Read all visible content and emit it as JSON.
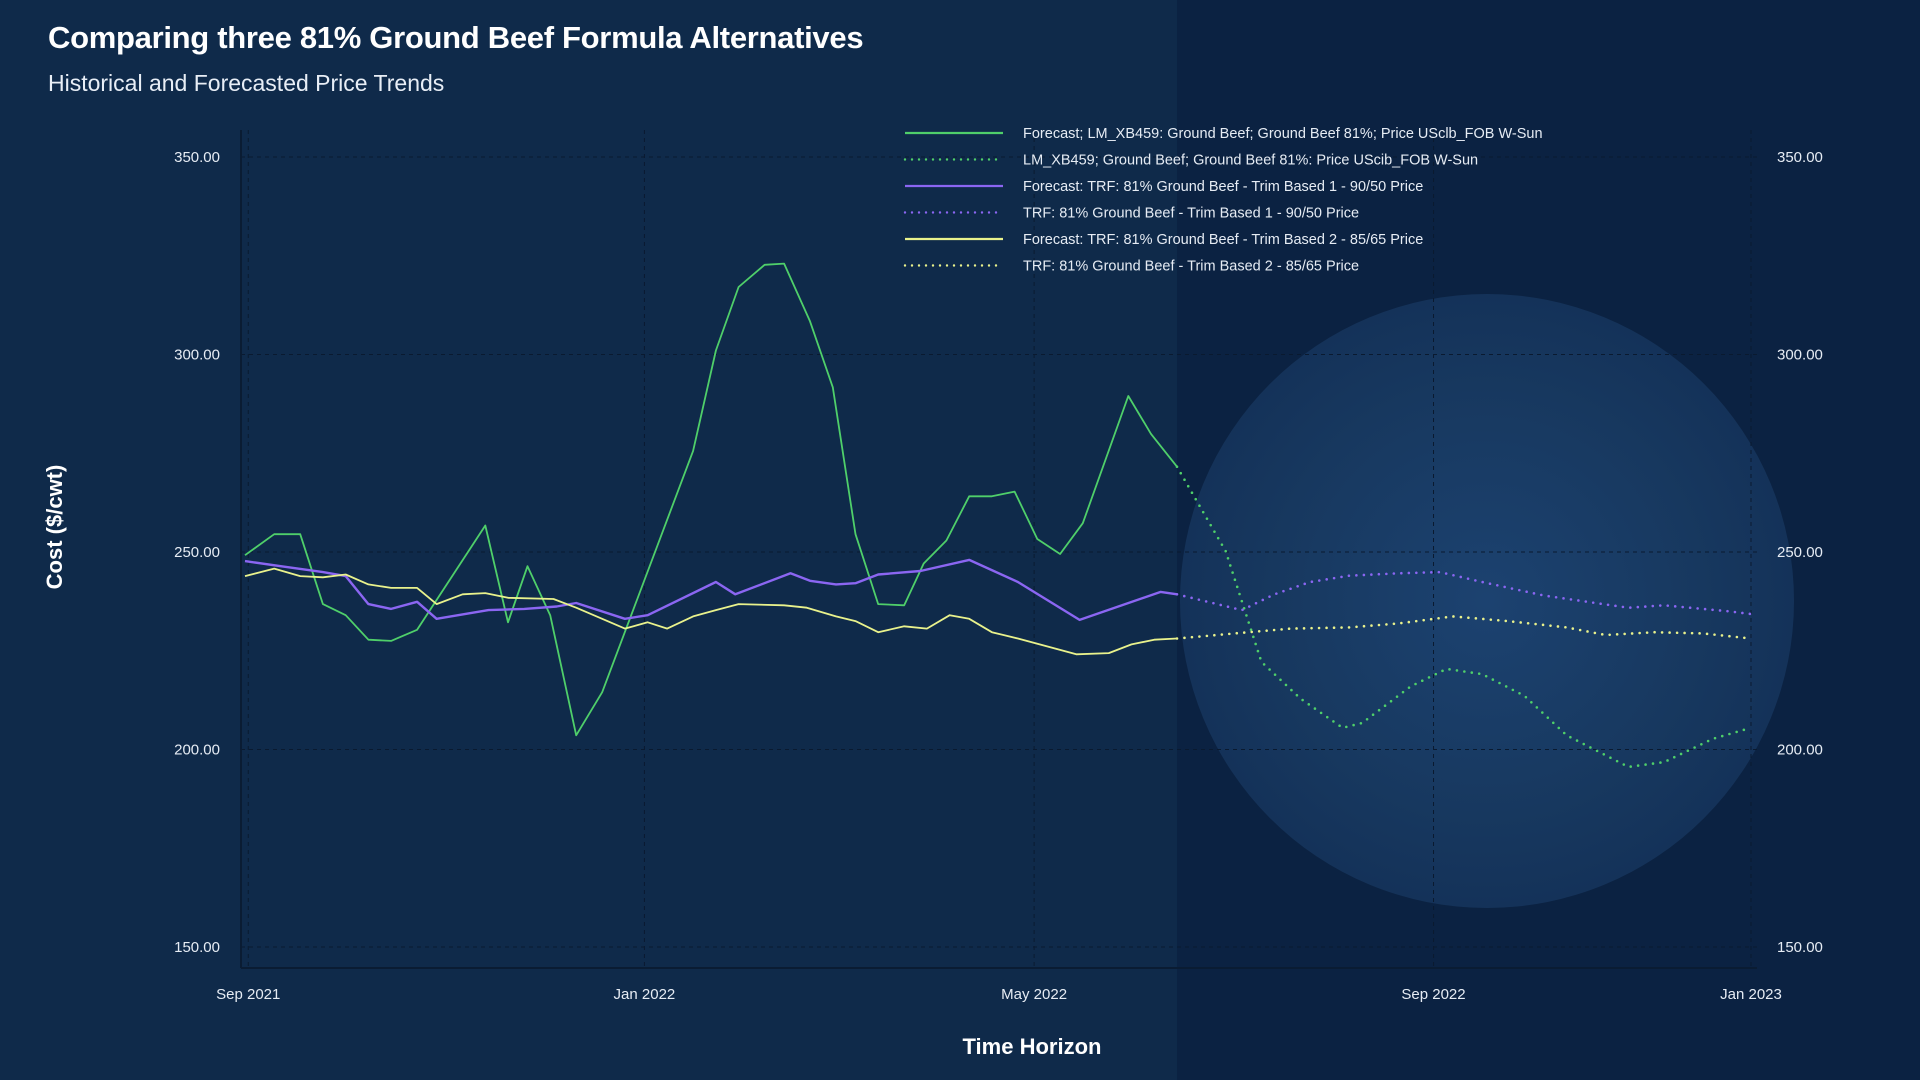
{
  "header": {
    "title": "Comparing three 81% Ground Beef Formula Alternatives",
    "subtitle": "Historical and Forecasted Price Trends"
  },
  "chart_data": {
    "type": "line",
    "title": "Comparing three 81% Ground Beef Formula Alternatives",
    "subtitle": "Historical and Forecasted Price Trends",
    "xlabel": "Time Horizon",
    "ylabel": "Cost ($/cwt)",
    "ylim": [
      150,
      350
    ],
    "yticks": [
      "150.00",
      "200.00",
      "250.00",
      "300.00",
      "350.00"
    ],
    "ytick_values": [
      150,
      200,
      250,
      300,
      350
    ],
    "xticks": [
      {
        "label": "Sep 2021",
        "date": "2021-09-01"
      },
      {
        "label": "Jan 2022",
        "date": "2022-01-01"
      },
      {
        "label": "May 2022",
        "date": "2022-05-01"
      },
      {
        "label": "Sep 2022",
        "date": "2022-09-01"
      },
      {
        "label": "Jan 2023",
        "date": "2023-01-01"
      }
    ],
    "xlim": [
      "2021-08-31",
      "2022-12-09"
    ],
    "forecast_start": "2022-06-14",
    "grid": true,
    "y_axis_both_sides": true,
    "legend_placement": "top-center",
    "colors": {
      "background": "#0f2a4a",
      "forecast_region": "#0b2242",
      "green": "#4fcf6a",
      "purple": "#8b66f2",
      "yellow": "#e9f28c"
    },
    "series": [
      {
        "name": "Forecast; LM_XB459: Ground Beef; Ground Beef 81%; Price USclb_FOB W-Sun",
        "color": "#4fcf6a",
        "style": "solid",
        "x": [
          "2021-08-31",
          "2021-09-09",
          "2021-09-17",
          "2021-09-24",
          "2021-10-01",
          "2021-10-08",
          "2021-10-15",
          "2021-10-23",
          "2021-11-13",
          "2021-11-20",
          "2021-11-26",
          "2021-12-03",
          "2021-12-11",
          "2021-12-19",
          "2022-01-16",
          "2022-01-23",
          "2022-01-30",
          "2022-02-07",
          "2022-02-13",
          "2022-02-21",
          "2022-02-28",
          "2022-03-07",
          "2022-03-14",
          "2022-03-22",
          "2022-03-28",
          "2022-04-04",
          "2022-04-11",
          "2022-04-18",
          "2022-04-25",
          "2022-05-02",
          "2022-05-09",
          "2022-05-16",
          "2022-05-30",
          "2022-06-06",
          "2022-06-14"
        ],
        "y": [
          249.2,
          254.5,
          254.5,
          236.8,
          234.0,
          227.8,
          227.5,
          230.3,
          256.7,
          232.2,
          246.4,
          234.0,
          203.6,
          214.5,
          275.6,
          301.0,
          317.1,
          322.7,
          323.0,
          308.4,
          291.7,
          254.5,
          236.8,
          236.5,
          247.1,
          252.9,
          264.1,
          264.1,
          265.3,
          253.3,
          249.5,
          257.3,
          289.5,
          279.9,
          271.6
        ]
      },
      {
        "name": "LM_XB459; Ground Beef; Ground Beef 81%: Price UScib_FOB W-Sun",
        "color": "#4fcf6a",
        "style": "dotted",
        "x": [
          "2022-06-14",
          "2022-06-29",
          "2022-07-10",
          "2022-07-22",
          "2022-08-04",
          "2022-08-10",
          "2022-08-25",
          "2022-09-05",
          "2022-09-16",
          "2022-09-29",
          "2022-10-12",
          "2022-10-31",
          "2022-11-11",
          "2022-11-26",
          "2022-12-09"
        ],
        "y": [
          271.6,
          250.2,
          222.2,
          212.9,
          205.5,
          206.7,
          216.0,
          220.4,
          219.1,
          213.6,
          203.6,
          195.6,
          196.8,
          202.7,
          205.5
        ]
      },
      {
        "name": "Forecast: TRF: 81% Ground Beef - Trim Based 1 - 90/50 Price",
        "color": "#8b66f2",
        "style": "solid",
        "x": [
          "2021-08-31",
          "2021-09-11",
          "2021-09-24",
          "2021-10-01",
          "2021-10-08",
          "2021-10-15",
          "2021-10-23",
          "2021-10-29",
          "2021-11-14",
          "2021-11-25",
          "2021-12-05",
          "2021-12-11",
          "2021-12-26",
          "2022-01-02",
          "2022-01-23",
          "2022-01-29",
          "2022-02-15",
          "2022-02-21",
          "2022-03-01",
          "2022-03-07",
          "2022-03-14",
          "2022-03-27",
          "2022-04-11",
          "2022-04-26",
          "2022-05-15",
          "2022-06-09",
          "2022-06-14"
        ],
        "y": [
          247.7,
          246.4,
          244.9,
          243.9,
          236.8,
          235.6,
          237.4,
          233.1,
          235.3,
          235.6,
          236.2,
          237.1,
          233.1,
          234.0,
          242.4,
          239.3,
          244.6,
          242.7,
          241.8,
          242.1,
          244.3,
          245.2,
          248.0,
          242.4,
          232.8,
          239.9,
          239.3
        ]
      },
      {
        "name": "TRF: 81% Ground Beef - Trim Based 1 - 90/50 Price",
        "color": "#8b66f2",
        "style": "dotted",
        "x": [
          "2022-06-14",
          "2022-07-04",
          "2022-07-14",
          "2022-07-25",
          "2022-08-06",
          "2022-08-21",
          "2022-09-03",
          "2022-09-16",
          "2022-10-05",
          "2022-10-31",
          "2022-11-11",
          "2022-12-01",
          "2022-12-09"
        ],
        "y": [
          239.3,
          235.3,
          239.3,
          242.4,
          244.0,
          244.6,
          244.9,
          242.4,
          239.0,
          235.9,
          236.5,
          235.0,
          234.3
        ]
      },
      {
        "name": "Forecast: TRF: 81% Ground Beef - Trim Based 2 - 85/65 Price",
        "color": "#e9f28c",
        "style": "solid",
        "x": [
          "2021-08-31",
          "2021-09-09",
          "2021-09-17",
          "2021-09-24",
          "2021-10-01",
          "2021-10-08",
          "2021-10-15",
          "2021-10-23",
          "2021-10-29",
          "2021-11-06",
          "2021-11-13",
          "2021-11-20",
          "2021-12-04",
          "2021-12-11",
          "2021-12-26",
          "2022-01-02",
          "2022-01-08",
          "2022-01-16",
          "2022-01-23",
          "2022-01-30",
          "2022-02-13",
          "2022-02-20",
          "2022-03-01",
          "2022-03-07",
          "2022-03-14",
          "2022-03-22",
          "2022-03-29",
          "2022-04-05",
          "2022-04-11",
          "2022-04-18",
          "2022-04-26",
          "2022-05-14",
          "2022-05-24",
          "2022-05-31",
          "2022-06-07",
          "2022-06-14"
        ],
        "y": [
          243.9,
          245.8,
          243.9,
          243.6,
          244.3,
          241.8,
          240.9,
          240.9,
          236.8,
          239.3,
          239.6,
          238.4,
          238.1,
          235.9,
          230.6,
          232.2,
          230.6,
          233.7,
          235.3,
          236.8,
          236.5,
          235.9,
          233.7,
          232.5,
          229.7,
          231.2,
          230.6,
          234.0,
          233.1,
          229.7,
          228.1,
          224.1,
          224.4,
          226.6,
          227.8,
          228.1
        ]
      },
      {
        "name": "TRF: 81% Ground Beef - Trim Based 2 - 85/65 Price",
        "color": "#e9f28c",
        "style": "dotted",
        "x": [
          "2022-06-14",
          "2022-07-06",
          "2022-07-19",
          "2022-08-06",
          "2022-08-21",
          "2022-09-07",
          "2022-09-24",
          "2022-10-12",
          "2022-10-24",
          "2022-11-08",
          "2022-11-23",
          "2022-12-09"
        ],
        "y": [
          228.1,
          229.7,
          230.6,
          230.9,
          231.9,
          233.7,
          232.5,
          230.9,
          229.0,
          229.7,
          229.4,
          228.1
        ]
      }
    ]
  }
}
